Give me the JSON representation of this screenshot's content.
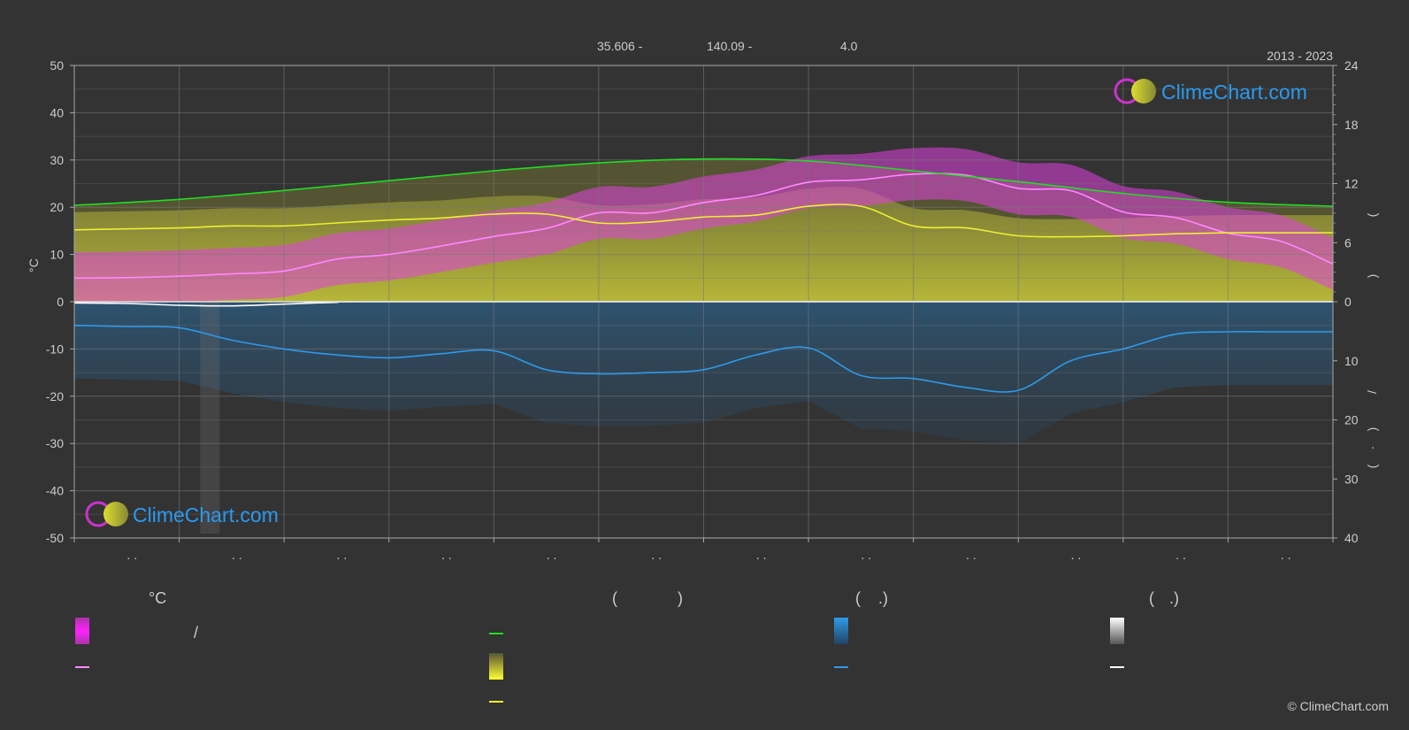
{
  "header": {
    "latitude": "35.606 -",
    "longitude": "140.09 -",
    "elevation": "4.0",
    "period": "2013 - 2023"
  },
  "branding": {
    "logo_text": "ClimeChart.com",
    "copyright": "© ClimeChart.com"
  },
  "axes": {
    "left_label": "°C",
    "right_top_label_a": "(",
    "right_top_label_b": ")",
    "right_slash": "/",
    "right_bottom_label_a": "(",
    "right_bottom_label_b": "·",
    "right_bottom_label_c": ")",
    "left_ticks": [
      "50",
      "40",
      "30",
      "20",
      "10",
      "0",
      "-10",
      "-20",
      "-30",
      "-40",
      "-50"
    ],
    "right_top_ticks": [
      "24",
      "18",
      "12",
      "6",
      "0"
    ],
    "right_bottom_ticks": [
      "10",
      "20",
      "30",
      "40"
    ],
    "month_labels": [
      ". .",
      ". .",
      ". .",
      ". .",
      ". .",
      ". .",
      ". .",
      ". .",
      ". .",
      ". .",
      ". .",
      ". ."
    ]
  },
  "legend": {
    "col1_header": "°C",
    "col1_slash": "/",
    "col2_header_a": "(",
    "col2_header_b": ")",
    "col3_header_a": "(",
    "col3_header_b": ".)",
    "col4_header_a": "(",
    "col4_header_b": ".)"
  },
  "colors": {
    "background": "#333333",
    "grid": "#777777",
    "temperature_band": "#e040e0",
    "temperature_line": "#ff88ff",
    "daylight_line": "#22dd22",
    "sunshine_band": "#bbbb33",
    "sunshine_line": "#eeee33",
    "precip_band": "#2a6da0",
    "precip_line": "#2f9ae8",
    "snow_line": "#ffffff",
    "brand_blue": "#2a9af0"
  },
  "chart_data": {
    "type": "line",
    "months": 12,
    "temp_ylim": [
      -50,
      50
    ],
    "hours_ylim": [
      0,
      24
    ],
    "precip_ylim": [
      0,
      40
    ],
    "series": [
      {
        "key": "mean_temperature",
        "axis": "temp",
        "x": [
          0.0,
          0.5,
          1.0,
          1.5,
          2.0,
          2.5,
          3.0,
          3.5,
          4.0,
          4.5,
          5.0,
          5.5,
          6.0,
          6.5,
          7.0,
          7.5,
          8.0,
          8.5,
          9.0,
          9.5,
          10.0,
          10.5,
          11.0,
          11.5,
          12.0
        ],
        "values": [
          5.0,
          5.1,
          5.4,
          5.9,
          6.5,
          9.0,
          10.0,
          11.8,
          13.8,
          15.5,
          18.8,
          18.8,
          21.0,
          22.5,
          25.3,
          25.8,
          27.0,
          26.8,
          24.0,
          23.5,
          19.0,
          17.8,
          14.5,
          12.8,
          8.0
        ]
      },
      {
        "key": "daylight_hours",
        "axis": "hours",
        "x": [
          0,
          1,
          2,
          3,
          4,
          5,
          6,
          7,
          8,
          9,
          10,
          11,
          12
        ],
        "values": [
          9.8,
          10.4,
          11.3,
          12.3,
          13.3,
          14.1,
          14.5,
          14.3,
          13.3,
          12.2,
          11.0,
          10.1,
          9.7
        ]
      },
      {
        "key": "sunshine_hours",
        "axis": "hours",
        "x": [
          0.0,
          0.5,
          1.0,
          1.5,
          2.0,
          2.5,
          3.0,
          3.5,
          4.0,
          4.5,
          5.0,
          5.5,
          6.0,
          6.5,
          7.0,
          7.5,
          8.0,
          8.5,
          9.0,
          9.5,
          10.0,
          10.5,
          11.0,
          11.5,
          12.0
        ],
        "values": [
          7.3,
          7.4,
          7.5,
          7.7,
          7.7,
          8.0,
          8.3,
          8.5,
          8.9,
          8.9,
          8.0,
          8.1,
          8.6,
          8.8,
          9.7,
          9.7,
          7.7,
          7.5,
          6.7,
          6.6,
          6.7,
          6.9,
          7.0,
          7.0,
          7.0
        ]
      },
      {
        "key": "precipitation",
        "axis": "precip",
        "x": [
          0.0,
          0.5,
          1.0,
          1.5,
          2.0,
          2.5,
          3.0,
          3.5,
          4.0,
          4.5,
          5.0,
          5.5,
          6.0,
          6.5,
          7.0,
          7.5,
          8.0,
          8.5,
          9.0,
          9.5,
          10.0,
          10.5,
          11.0,
          11.5,
          12.0
        ],
        "values": [
          4.0,
          4.2,
          4.4,
          6.5,
          8.0,
          9.0,
          9.5,
          8.8,
          8.3,
          11.5,
          12.2,
          12.0,
          11.5,
          9.0,
          7.8,
          12.5,
          13.0,
          14.5,
          15.0,
          10.0,
          8.0,
          5.5,
          5.1,
          5.1,
          5.1
        ]
      },
      {
        "key": "snowfall",
        "axis": "precip",
        "x": [
          0.0,
          0.5,
          1.0,
          1.5,
          2.0,
          2.5,
          3.0,
          12.0
        ],
        "values": [
          0.2,
          0.3,
          0.6,
          0.7,
          0.4,
          0.1,
          0.0,
          0.0
        ]
      }
    ]
  }
}
